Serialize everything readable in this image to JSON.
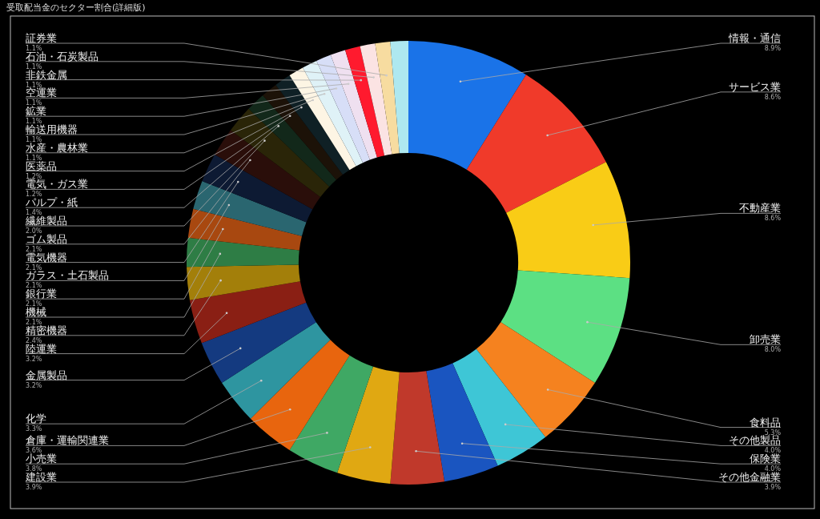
{
  "chart_data": {
    "type": "donut",
    "title": "受取配当金のセクター割合(詳細版)",
    "categories": [
      "情報・通信",
      "サービス業",
      "不動産業",
      "卸売業",
      "食料品",
      "その他製品",
      "保険業",
      "その他金融業",
      "建設業",
      "小売業",
      "倉庫・運輸関連業",
      "化学",
      "金属製品",
      "陸運業",
      "精密機器",
      "機械",
      "銀行業",
      "ガラス・土石製品",
      "電気機器",
      "ゴム製品",
      "繊維製品",
      "パルプ・紙",
      "電気・ガス業",
      "医薬品",
      "水産・農林業",
      "輸送用機器",
      "鉱業",
      "空運業",
      "非鉄金属",
      "石油・石炭製品",
      "証券業",
      null
    ],
    "values": [
      8.9,
      8.6,
      8.6,
      8.0,
      5.3,
      4.0,
      4.0,
      3.9,
      3.9,
      3.8,
      3.6,
      3.3,
      3.2,
      3.2,
      2.4,
      2.1,
      2.1,
      2.1,
      2.1,
      2.1,
      2.0,
      1.4,
      1.2,
      1.2,
      1.1,
      1.1,
      1.1,
      1.1,
      1.1,
      1.1,
      1.1,
      1.3
    ],
    "colors": [
      "#1a73e8",
      "#f03a2a",
      "#f9cc16",
      "#5ce083",
      "#f5821f",
      "#3ec6d6",
      "#1a55c0",
      "#c0392b",
      "#e0a812",
      "#3fa864",
      "#e8650e",
      "#2e95a0",
      "#143a80",
      "#8a1f14",
      "#a37f0a",
      "#2e7d45",
      "#a84810",
      "#2a6670",
      "#0d1a33",
      "#2a0e0a",
      "#2a2508",
      "#12281a",
      "#1c1208",
      "#0f2025",
      "#fdf5e4",
      "#dff2f7",
      "#d7def7",
      "#efe0f0",
      "#ff1a2e",
      "#fbe3e3",
      "#f7dca0",
      "#aee8f0"
    ],
    "value_labels": [
      "8.9%",
      "8.6%",
      "8.6%",
      "8.0%",
      "5.3%",
      "4.0%",
      "4.0%",
      "3.9%",
      "3.9%",
      "3.8%",
      "3.6%",
      "3.3%",
      "3.2%",
      "3.2%",
      "2.4%",
      "2.1%",
      "2.1%",
      "2.1%",
      "2.1%",
      "2.1%",
      "2.0%",
      "1.4%",
      "1.2%",
      "1.2%",
      "1.1%",
      "1.1%",
      "1.1%",
      "1.1%",
      "1.1%",
      "1.1%",
      "1.1%",
      null
    ]
  }
}
